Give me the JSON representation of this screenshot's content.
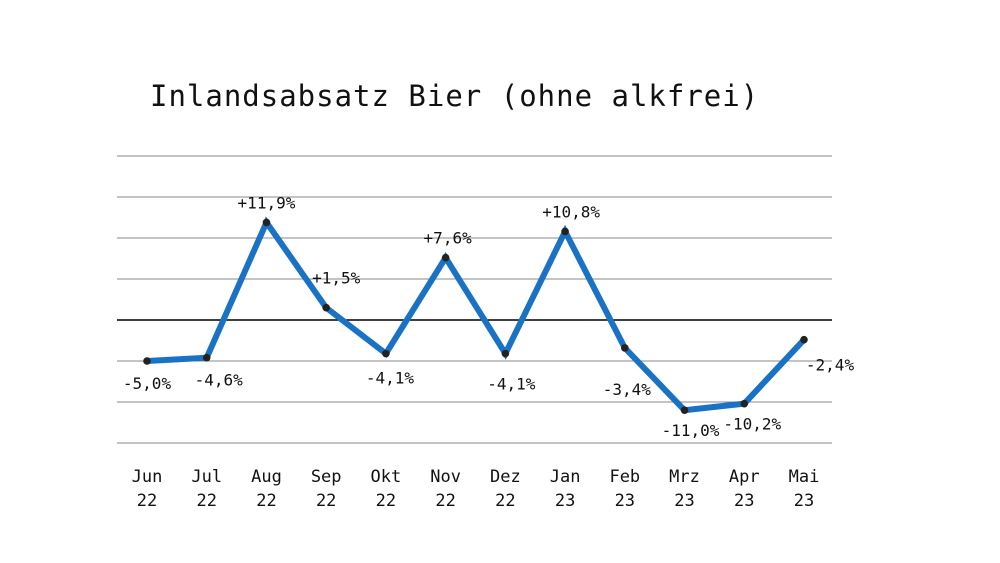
{
  "chart_data": {
    "type": "line",
    "title": "Inlandsabsatz Bier (ohne alkfrei)",
    "categories": [
      [
        "Jun",
        "22"
      ],
      [
        "Jul",
        "22"
      ],
      [
        "Aug",
        "22"
      ],
      [
        "Sep",
        "22"
      ],
      [
        "Okt",
        "22"
      ],
      [
        "Nov",
        "22"
      ],
      [
        "Dez",
        "22"
      ],
      [
        "Jan",
        "23"
      ],
      [
        "Feb",
        "23"
      ],
      [
        "Mrz",
        "23"
      ],
      [
        "Apr",
        "23"
      ],
      [
        "Mai",
        "23"
      ]
    ],
    "series": [
      {
        "values": [
          -5.0,
          -4.6,
          11.9,
          1.5,
          -4.1,
          7.6,
          -4.1,
          10.8,
          -3.4,
          -11.0,
          -10.2,
          -2.4
        ],
        "labels": [
          "-5,0%",
          "-4,6%",
          "+11,9%",
          "+1,5%",
          "-4,1%",
          "+7,6%",
          "-4,1%",
          "+10,8%",
          "-3,4%",
          "-11,0%",
          "-10,2%",
          "-2,4%"
        ],
        "color": "#1a72c4"
      }
    ],
    "ylim": [
      -15,
      20
    ],
    "gridlines": [
      -15,
      -10,
      -5,
      0,
      5,
      10,
      15,
      20
    ],
    "zero_line": true,
    "grid": true,
    "legend": false,
    "colors": {
      "line": "#1a72c4",
      "grid": "#888888",
      "zero": "#000000",
      "marker": "#222222"
    }
  }
}
